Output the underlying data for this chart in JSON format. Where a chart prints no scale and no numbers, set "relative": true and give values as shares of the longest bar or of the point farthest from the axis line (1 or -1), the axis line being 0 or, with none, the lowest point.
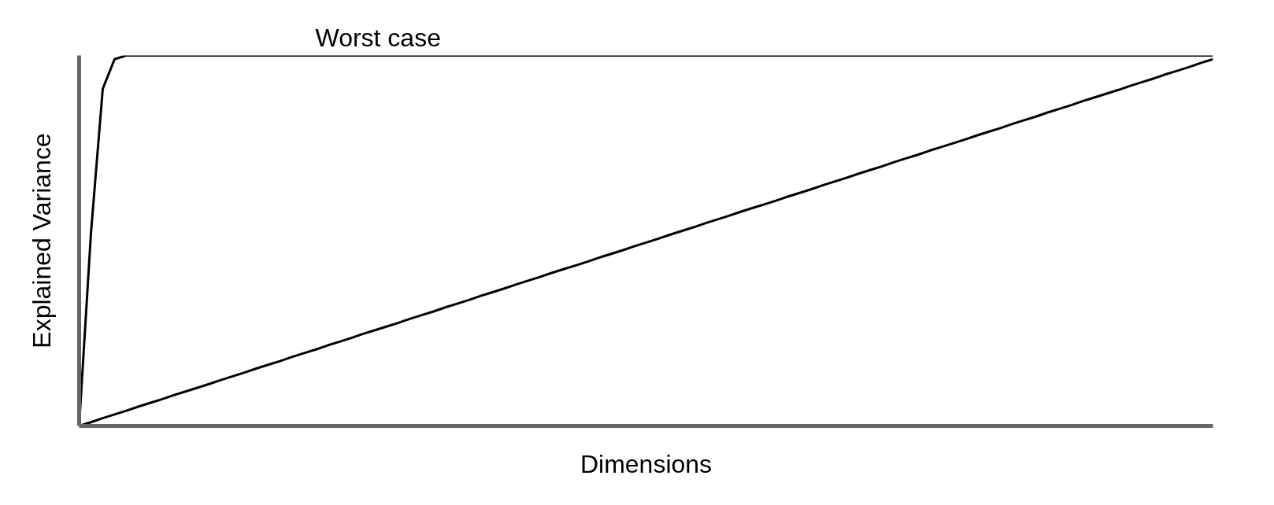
{
  "chart_data": {
    "type": "line",
    "title": "Worst case",
    "xlabel": "Dimensions",
    "ylabel": "Explained Variance",
    "relative": true,
    "marker": "none",
    "line_style": "solid",
    "categories": [
      null,
      null,
      null,
      null,
      null,
      null,
      null,
      null,
      null,
      null,
      null,
      null,
      null,
      null,
      null,
      null,
      null,
      null,
      null,
      null,
      null,
      null,
      null,
      null,
      null,
      null,
      null,
      null,
      null,
      null,
      null,
      null,
      null,
      null,
      null,
      null,
      null,
      null,
      null,
      null,
      null,
      null,
      null,
      null,
      null,
      null,
      null,
      null,
      null,
      null,
      null,
      null,
      null,
      null,
      null,
      null,
      null,
      null,
      null,
      null,
      null,
      null,
      null,
      null,
      null,
      null,
      null,
      null,
      null,
      null,
      null,
      null,
      null,
      null,
      null,
      null,
      null,
      null,
      null,
      null,
      null,
      null,
      null,
      null,
      null,
      null,
      null,
      null,
      null,
      null,
      null,
      null,
      null,
      null,
      null,
      null,
      null
    ],
    "series": [
      {
        "color": "#000000",
        "values": [
          0,
          0.52,
          0.91,
          0.99,
          1,
          1,
          1,
          1,
          1,
          1,
          1,
          1,
          1,
          1,
          1,
          1,
          1,
          1,
          1,
          1,
          1,
          1,
          1,
          1,
          1,
          1,
          1,
          1,
          1,
          1,
          1,
          1,
          1,
          1,
          1,
          1,
          1,
          1,
          1,
          1,
          1,
          1,
          1,
          1,
          1,
          1,
          1,
          1,
          1,
          1,
          1,
          1,
          1,
          1,
          1,
          1,
          1,
          1,
          1,
          1,
          1,
          1,
          1,
          1,
          1,
          1,
          1,
          1,
          1,
          1,
          1,
          1,
          1,
          1,
          1,
          1,
          1,
          1,
          1,
          1,
          1,
          1,
          1,
          1,
          1,
          1,
          1,
          1,
          1,
          1,
          1,
          1,
          1,
          1,
          1,
          1,
          1
        ]
      },
      {
        "color": "#000000",
        "values": [
          0,
          0.01,
          0.021,
          0.031,
          0.041,
          0.052,
          0.062,
          0.072,
          0.083,
          0.093,
          0.103,
          0.113,
          0.124,
          0.134,
          0.144,
          0.155,
          0.165,
          0.175,
          0.186,
          0.196,
          0.206,
          0.217,
          0.227,
          0.237,
          0.248,
          0.258,
          0.268,
          0.278,
          0.289,
          0.299,
          0.309,
          0.32,
          0.33,
          0.34,
          0.351,
          0.361,
          0.371,
          0.382,
          0.392,
          0.402,
          0.413,
          0.423,
          0.433,
          0.443,
          0.454,
          0.464,
          0.474,
          0.485,
          0.495,
          0.505,
          0.516,
          0.526,
          0.536,
          0.547,
          0.557,
          0.567,
          0.578,
          0.588,
          0.598,
          0.608,
          0.619,
          0.629,
          0.639,
          0.65,
          0.66,
          0.67,
          0.681,
          0.691,
          0.701,
          0.712,
          0.722,
          0.732,
          0.743,
          0.753,
          0.763,
          0.773,
          0.784,
          0.794,
          0.804,
          0.815,
          0.825,
          0.835,
          0.846,
          0.856,
          0.866,
          0.877,
          0.887,
          0.897,
          0.907,
          0.918,
          0.928,
          0.938,
          0.949,
          0.959,
          0.969,
          0.98,
          0.99
        ]
      }
    ]
  }
}
